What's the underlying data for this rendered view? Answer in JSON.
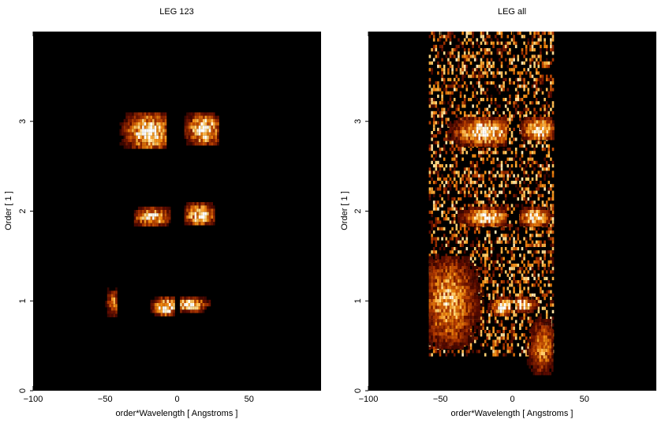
{
  "chart_data": [
    {
      "type": "heatmap",
      "title": "LEG 123",
      "xlabel": "order*Wavelength [ Angstroms ]",
      "ylabel": "Order [ 1 ]",
      "xlim": [
        -100,
        100
      ],
      "ylim": [
        0,
        4
      ],
      "xticks": [
        -100,
        -50,
        0,
        50
      ],
      "yticks": [
        0,
        1,
        2,
        3
      ],
      "colormap": [
        "#000000",
        "#5a0a00",
        "#b23a00",
        "#f08a10",
        "#ffd070",
        "#ffffff"
      ],
      "background": "#000000",
      "features": [
        {
          "x": [
            -40,
            -8
          ],
          "y": [
            2.7,
            3.1
          ],
          "peak_x": -20,
          "intensity": 1.0
        },
        {
          "x": [
            5,
            28
          ],
          "y": [
            2.75,
            3.1
          ],
          "peak_x": 18,
          "intensity": 1.0
        },
        {
          "x": [
            -30,
            -5
          ],
          "y": [
            1.85,
            2.05
          ],
          "peak_x": -18,
          "intensity": 0.9
        },
        {
          "x": [
            5,
            26
          ],
          "y": [
            1.85,
            2.1
          ],
          "peak_x": 15,
          "intensity": 0.9
        },
        {
          "x": [
            -20,
            -2
          ],
          "y": [
            0.85,
            1.05
          ],
          "peak_x": -8,
          "intensity": 1.0
        },
        {
          "x": [
            2,
            26
          ],
          "y": [
            0.9,
            1.05
          ],
          "peak_x": 8,
          "intensity": 1.0
        },
        {
          "x": [
            -50,
            -42
          ],
          "y": [
            0.85,
            1.15
          ],
          "peak_x": -45,
          "intensity": 0.6
        }
      ]
    },
    {
      "type": "heatmap",
      "title": "LEG all",
      "xlabel": "order*Wavelength [ Angstroms ]",
      "ylabel": "Order [ 1 ]",
      "xlim": [
        -100,
        100
      ],
      "ylim": [
        0,
        4
      ],
      "xticks": [
        -100,
        -50,
        0,
        50
      ],
      "yticks": [
        0,
        1,
        2,
        3
      ],
      "colormap": [
        "#000000",
        "#5a0a00",
        "#b23a00",
        "#f08a10",
        "#ffd070",
        "#ffffff"
      ],
      "background": "#000000",
      "features": [
        {
          "x": [
            -58,
            28
          ],
          "y": [
            0.4,
            4.0
          ],
          "peak_x": 0,
          "intensity": 0.45
        },
        {
          "x": [
            -45,
            -5
          ],
          "y": [
            2.75,
            3.05
          ],
          "peak_x": -20,
          "intensity": 1.0
        },
        {
          "x": [
            5,
            28
          ],
          "y": [
            2.8,
            3.05
          ],
          "peak_x": 18,
          "intensity": 1.0
        },
        {
          "x": [
            -38,
            -5
          ],
          "y": [
            1.85,
            2.05
          ],
          "peak_x": -18,
          "intensity": 0.95
        },
        {
          "x": [
            5,
            26
          ],
          "y": [
            1.85,
            2.05
          ],
          "peak_x": 15,
          "intensity": 0.95
        },
        {
          "x": [
            -20,
            -2
          ],
          "y": [
            0.85,
            1.05
          ],
          "peak_x": -6,
          "intensity": 1.0
        },
        {
          "x": [
            2,
            20
          ],
          "y": [
            0.9,
            1.05
          ],
          "peak_x": 6,
          "intensity": 1.0
        },
        {
          "x": [
            -58,
            -20
          ],
          "y": [
            0.5,
            1.5
          ],
          "peak_x": -45,
          "intensity": 0.7
        },
        {
          "x": [
            10,
            28
          ],
          "y": [
            0.2,
            0.8
          ],
          "peak_x": 20,
          "intensity": 0.6
        }
      ]
    }
  ]
}
